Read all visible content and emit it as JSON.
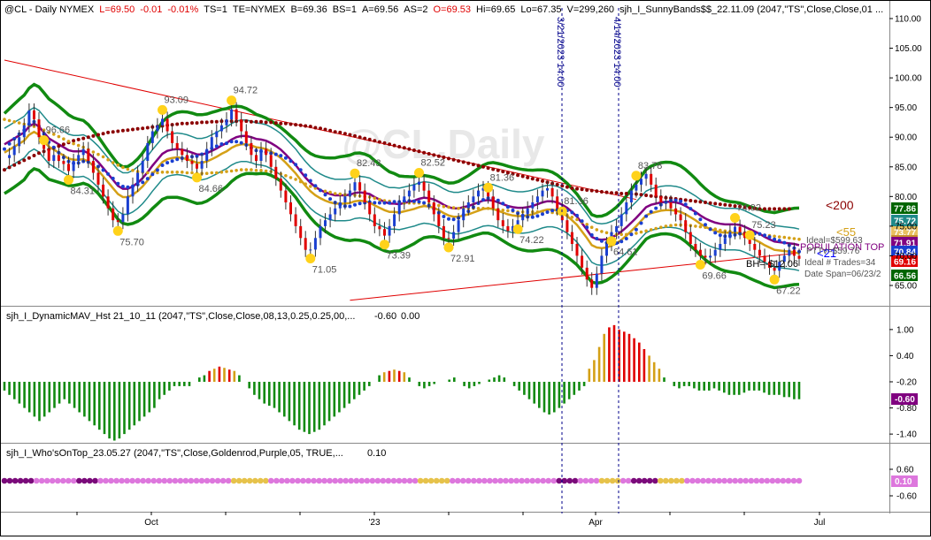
{
  "header": {
    "symbol": "@CL",
    "parts": [
      {
        "text": "@CL - Daily  NYMEX",
        "color": "#000000"
      },
      {
        "text": "L=69.50",
        "color": "#e00000"
      },
      {
        "text": "-0.01",
        "color": "#e00000"
      },
      {
        "text": "-0.01%",
        "color": "#e00000"
      },
      {
        "text": "TS=1",
        "color": "#000000"
      },
      {
        "text": "TE=NYMEX",
        "color": "#000000"
      },
      {
        "text": "B=69.36",
        "color": "#000000"
      },
      {
        "text": "BS=1",
        "color": "#000000"
      },
      {
        "text": "A=69.56",
        "color": "#000000"
      },
      {
        "text": "AS=2",
        "color": "#000000"
      },
      {
        "text": "O=69.53",
        "color": "#e00000"
      },
      {
        "text": "Hi=69.65",
        "color": "#000000"
      },
      {
        "text": "Lo=67.35",
        "color": "#000000"
      },
      {
        "text": "V=299,260",
        "color": "#000000"
      },
      {
        "text": "sjh_I_SunnyBands$$_22.11.09 (2047,\"TS\",Close,Close,01 ...",
        "color": "#000000"
      }
    ]
  },
  "watermark": "@CL,Daily",
  "vlines": [
    {
      "label": "3/21/2023 14:00",
      "x_index": 0
    },
    {
      "label": "4/14/2023 14:00",
      "x_index": 1
    }
  ],
  "x_axis": {
    "labels": [
      "Oct",
      "'23",
      "Apr",
      "Jul"
    ]
  },
  "chart_data": [
    {
      "type": "line",
      "panel": "price",
      "y_axis": {
        "min": 65,
        "max": 110,
        "ticks": [
          "110.00",
          "105.00",
          "100.00",
          "95.00",
          "90.00",
          "85.00",
          "80.00",
          "75.00",
          "70.00",
          "65.00"
        ]
      },
      "annotations": [
        "96.66",
        "93.09",
        "94.72",
        "84.31",
        "75.70",
        "84.66",
        "71.05",
        "73.39",
        "82.43",
        "82.52",
        "72.91",
        "81.36",
        "74.22",
        "81.36",
        "64.61",
        "83.78",
        "74.92",
        "75.23",
        "69.66",
        "67.22"
      ],
      "right_labels": [
        {
          "text": "<200",
          "color": "#8b0000"
        },
        {
          "text": "<55",
          "color": "#d4a017"
        },
        {
          "text": "POPULATION TOP",
          "color": "#800080"
        },
        {
          "text": "<21",
          "color": "#0000ff"
        },
        {
          "text": "Ideal=$599.63",
          "color": "#555555"
        },
        {
          "text": "PTTv=$59.76",
          "color": "#555555"
        },
        {
          "text": "Ideal # Trades=34",
          "color": "#555555"
        },
        {
          "text": "Date Span=06/23/2",
          "color": "#555555"
        },
        {
          "text": "BH=-$12.06",
          "color": "#000000"
        }
      ],
      "price_tags": [
        {
          "text": "77.86",
          "bg": "#006400",
          "fg": "#ffffff"
        },
        {
          "text": "75.72",
          "bg": "#1f8a8a",
          "fg": "#ffffff"
        },
        {
          "text": "73.77",
          "bg": "#e8c060",
          "fg": "#ffffff"
        },
        {
          "text": "73.12",
          "bg": "#c89030",
          "fg": "#ffffff"
        },
        {
          "text": "71.91",
          "bg": "#800080",
          "fg": "#ffffff"
        },
        {
          "text": "70.84",
          "bg": "#1a3fd0",
          "fg": "#ffffff"
        },
        {
          "text": "69.16",
          "bg": "#e00000",
          "fg": "#ffffff"
        },
        {
          "text": "66.56",
          "bg": "#006400",
          "fg": "#ffffff"
        }
      ],
      "series": [
        {
          "name": "close",
          "color": "#1a3fd0",
          "values": [
            86.5,
            87,
            88.5,
            90,
            92,
            94.5,
            93,
            90,
            88,
            86,
            87,
            86,
            85.5,
            84.3,
            86,
            87,
            88,
            86,
            84,
            82,
            80,
            78,
            76,
            75.7,
            77,
            80,
            82,
            84,
            86,
            89,
            91,
            92,
            93.1,
            91,
            89,
            88,
            87,
            86,
            85.5,
            84.7,
            86,
            88,
            90,
            91,
            92,
            93,
            94.7,
            93,
            91,
            89,
            87,
            86,
            88,
            87,
            85,
            83,
            81,
            79,
            77,
            75,
            73,
            71,
            71.05,
            73,
            75,
            76,
            77,
            78,
            79,
            80,
            81,
            82.4,
            81,
            79,
            77,
            75,
            74.5,
            73.4,
            75,
            77,
            79,
            80,
            81,
            82,
            82.5,
            81,
            79,
            77,
            75,
            73,
            72.9,
            74,
            76,
            78,
            79,
            80,
            81,
            81.4,
            80,
            78,
            76,
            75,
            74.2,
            75,
            76,
            77,
            78,
            79,
            80,
            81,
            81.4,
            80,
            78,
            76,
            74,
            72,
            70,
            68,
            66,
            64.6,
            67,
            70,
            72,
            74,
            75,
            77,
            79,
            81,
            82,
            83,
            83.8,
            82,
            80,
            79,
            79,
            78,
            77,
            76,
            74,
            72,
            71,
            70,
            69.7,
            70,
            71,
            72,
            73,
            74,
            74.9,
            74,
            73,
            72,
            71,
            70,
            69,
            68,
            67.5,
            69,
            70,
            71,
            70,
            69.5
          ]
        },
        {
          "name": "ema21",
          "color": "#1a3fd0",
          "values": [
            88,
            88.5,
            89,
            89.5,
            90,
            91,
            91.5,
            91,
            90,
            89,
            88.5,
            88,
            87.5,
            87,
            86.8,
            86.8,
            86.9,
            86.5,
            85.8,
            85,
            84,
            83,
            82,
            81,
            80.5,
            80.5,
            80.9,
            81.5,
            82.3,
            83.3,
            84.4,
            85.4,
            86.4,
            86.9,
            87.1,
            87.2,
            87.1,
            86.9,
            86.6,
            86.3,
            86.3,
            86.5,
            86.9,
            87.3,
            87.8,
            88.2,
            88.8,
            89.2,
            89.4,
            89.4,
            89.2,
            88.9,
            88.8,
            88.6,
            88.2,
            87.7,
            87.1,
            86.3,
            85.4,
            84.5,
            83.4,
            82.4,
            81.5,
            80.8,
            80.3,
            79.9,
            79.6,
            79.4,
            79.4,
            79.4,
            79.5,
            79.8,
            79.9,
            79.8,
            79.6,
            79.1,
            78.7,
            78.3,
            78,
            78,
            77.9,
            78.1,
            78.3,
            78.5,
            78.8,
            79,
            78.9,
            78.7,
            78.3,
            77.8,
            77.4,
            77.2,
            77.2,
            77.4,
            77.6,
            77.9,
            78.2,
            78.5,
            78.6,
            78.5,
            78.2,
            77.9,
            77.6,
            77.4,
            77.3,
            77.3,
            77.4,
            77.6,
            77.9,
            78.2,
            78.4,
            78.4,
            78.2,
            77.8,
            77.3,
            76.6,
            75.8,
            74.7,
            73.6,
            72.4,
            72,
            71.9,
            72,
            72.3,
            72.7,
            73.3,
            74,
            74.8,
            75.6,
            76.5,
            77.4,
            77.8,
            78,
            78.2,
            78.3,
            78.3,
            78.2,
            78,
            77.6,
            77.1,
            76.6,
            76,
            75.5,
            75.1,
            74.8,
            74.6,
            74.5,
            74.5,
            74.5,
            74.4,
            74.1,
            73.7,
            73.3,
            72.9,
            72.4,
            72,
            71.6,
            71.5,
            71.4,
            71.3,
            71.2,
            71
          ]
        },
        {
          "name": "ma55",
          "color": "#d4a017",
          "values": [
            93,
            92.8,
            92.6,
            92.4,
            92.2,
            92,
            91.8,
            91.5,
            91.2,
            90.8,
            90.5,
            90.1,
            89.7,
            89.3,
            88.9,
            88.6,
            88.3,
            87.9,
            87.5,
            87.1,
            86.7,
            86.2,
            85.7,
            85.3,
            84.9,
            84.6,
            84.4,
            84.2,
            84.1,
            84,
            84,
            84,
            84.1,
            84.1,
            84.1,
            84.1,
            84.1,
            84,
            84,
            83.9,
            83.9,
            83.9,
            84,
            84,
            84.1,
            84.2,
            84.3,
            84.4,
            84.5,
            84.5,
            84.5,
            84.4,
            84.4,
            84.3,
            84.2,
            84,
            83.8,
            83.5,
            83.2,
            82.9,
            82.5,
            82.1,
            81.7,
            81.4,
            81.1,
            80.9,
            80.7,
            80.5,
            80.4,
            80.3,
            80.2,
            80.2,
            80.1,
            80,
            79.9,
            79.7,
            79.5,
            79.3,
            79.2,
            79.1,
            79,
            78.9,
            78.9,
            78.9,
            78.9,
            78.8,
            78.7,
            78.6,
            78.5,
            78.3,
            78.2,
            78.1,
            78,
            78,
            78,
            78,
            78,
            78,
            78,
            77.9,
            77.8,
            77.7,
            77.6,
            77.5,
            77.4,
            77.4,
            77.4,
            77.4,
            77.4,
            77.4,
            77.4,
            77.3,
            77.2,
            77,
            76.8,
            76.5,
            76.1,
            75.7,
            75.3,
            74.8,
            74.4,
            74.1,
            73.9,
            73.7,
            73.6,
            73.6,
            73.6,
            73.7,
            73.8,
            74,
            74.2,
            74.4,
            74.6,
            74.8,
            75,
            75.1,
            75.2,
            75.2,
            75.2,
            75.1,
            75,
            74.9,
            74.8,
            74.6,
            74.5,
            74.3,
            74.2,
            74.1,
            74,
            73.9,
            73.9,
            73.8,
            73.7,
            73.6,
            73.5,
            73.4,
            73.3,
            73.2,
            73.1,
            73,
            72.9,
            72.8
          ]
        },
        {
          "name": "ma200",
          "color": "#8b0000",
          "values": [
            84.5,
            84.9,
            85.3,
            85.7,
            86.1,
            86.5,
            86.9,
            87.3,
            87.6,
            87.9,
            88.2,
            88.5,
            88.8,
            89.1,
            89.4,
            89.6,
            89.8,
            90,
            90.2,
            90.4,
            90.6,
            90.8,
            90.9,
            91,
            91.1,
            91.2,
            91.3,
            91.4,
            91.5,
            91.6,
            91.7,
            91.8,
            91.9,
            92,
            92.1,
            92.2,
            92.3,
            92.3,
            92.4,
            92.4,
            92.5,
            92.5,
            92.6,
            92.6,
            92.7,
            92.7,
            92.7,
            92.7,
            92.7,
            92.7,
            92.6,
            92.6,
            92.6,
            92.5,
            92.5,
            92.4,
            92.3,
            92.3,
            92.2,
            92.1,
            92,
            91.9,
            91.8,
            91.6,
            91.5,
            91.3,
            91.1,
            90.9,
            90.8,
            90.6,
            90.4,
            90.2,
            90,
            89.8,
            89.6,
            89.4,
            89.2,
            89,
            88.8,
            88.6,
            88.4,
            88.2,
            88,
            87.8,
            87.6,
            87.4,
            87.2,
            87,
            86.8,
            86.6,
            86.4,
            86.2,
            86,
            85.8,
            85.6,
            85.4,
            85.2,
            85,
            84.8,
            84.6,
            84.4,
            84.2,
            84,
            83.8,
            83.6,
            83.4,
            83.2,
            83,
            82.8,
            82.6,
            82.4,
            82.2,
            82,
            81.8,
            81.6,
            81.4,
            81.3,
            81.2,
            81.1,
            81,
            80.9,
            80.8,
            80.7,
            80.6,
            80.6,
            80.5,
            80.5,
            80.4,
            80.4,
            80.3,
            80.2,
            80.1,
            80,
            79.9,
            79.8,
            79.7,
            79.6,
            79.5,
            79.4,
            79.3,
            79.2,
            79.1,
            79,
            78.9,
            78.8,
            78.7,
            78.6,
            78.5,
            78.4,
            78.3,
            78.2,
            78.1,
            78,
            77.9,
            77.9,
            77.9,
            77.9,
            77.9,
            77.9,
            77.9
          ]
        }
      ]
    },
    {
      "type": "bar",
      "panel": "indicator1",
      "title": "sjh_I_DynamicMAV_Hst 21_10_11 (2047,\"TS\",Close,Close,08,13,0.25,0.25,00,...",
      "title_values": [
        "-0.60",
        "0.00"
      ],
      "y_axis": {
        "min": -1.6,
        "max": 1.2,
        "ticks": [
          "1.00",
          "0.40",
          "-0.20",
          "-0.80",
          "-1.40"
        ]
      },
      "last_tag": {
        "text": "-0.60",
        "bg": "#800080",
        "fg": "#ffffff"
      },
      "values": [
        -0.4,
        -0.5,
        -0.6,
        -0.7,
        -0.8,
        -0.9,
        -1.0,
        -1.1,
        -1.0,
        -0.9,
        -0.8,
        -0.7,
        -0.6,
        -0.7,
        -0.8,
        -0.9,
        -1.0,
        -1.1,
        -1.2,
        -1.3,
        -1.4,
        -1.5,
        -1.55,
        -1.5,
        -1.4,
        -1.3,
        -1.2,
        -1.1,
        -1.0,
        -0.9,
        -0.8,
        -0.6,
        -0.5,
        -0.4,
        -0.3,
        -0.3,
        -0.3,
        -0.3,
        -0.2,
        -0.1,
        -0.05,
        0.05,
        0.1,
        0.15,
        0.12,
        0.08,
        0.05,
        -0.05,
        -0.2,
        -0.35,
        -0.5,
        -0.6,
        -0.7,
        -0.75,
        -0.8,
        -0.9,
        -1.0,
        -1.1,
        -1.2,
        -1.3,
        -1.35,
        -1.4,
        -1.35,
        -1.3,
        -1.2,
        -1.1,
        -1.0,
        -0.9,
        -0.8,
        -0.7,
        -0.6,
        -0.5,
        -0.4,
        -0.3,
        -0.2,
        -0.05,
        0.02,
        0.05,
        0.08,
        0.05,
        0.02,
        -0.1,
        -0.2,
        -0.3,
        -0.35,
        -0.3,
        -0.25,
        -0.2,
        -0.2,
        -0.15,
        -0.1,
        -0.2,
        -0.3,
        -0.35,
        -0.3,
        -0.25,
        -0.2,
        -0.15,
        -0.1,
        -0.05,
        -0.1,
        -0.2,
        -0.3,
        -0.4,
        -0.5,
        -0.6,
        -0.7,
        -0.8,
        -0.9,
        -0.95,
        -0.9,
        -0.8,
        -0.7,
        -0.6,
        -0.5,
        -0.4,
        -0.3,
        0.1,
        0.3,
        0.6,
        0.9,
        1.05,
        1.1,
        1.0,
        0.95,
        0.9,
        0.8,
        0.7,
        0.55,
        0.4,
        0.25,
        0.1,
        -0.1,
        -0.2,
        -0.3,
        -0.35,
        -0.3,
        -0.3,
        -0.35,
        -0.4,
        -0.4,
        -0.4,
        -0.35,
        -0.4,
        -0.45,
        -0.5,
        -0.5,
        -0.5,
        -0.45,
        -0.4,
        -0.4,
        -0.4,
        -0.45,
        -0.5,
        -0.5,
        -0.5,
        -0.55,
        -0.55,
        -0.6,
        -0.6
      ]
    },
    {
      "type": "scatter",
      "panel": "indicator2",
      "title": "sjh_I_Who'sOnTop_23.05.27 (2047,\"TS\",Close,Goldenrod,Purple,05,  TRUE,...",
      "title_values": [
        "0.10"
      ],
      "y_axis": {
        "ticks": [
          "0.60",
          "0.10",
          "-0.60"
        ]
      },
      "last_tag": {
        "text": "0.10",
        "bg": "#dd77dd",
        "fg": "#ffffff"
      }
    }
  ]
}
